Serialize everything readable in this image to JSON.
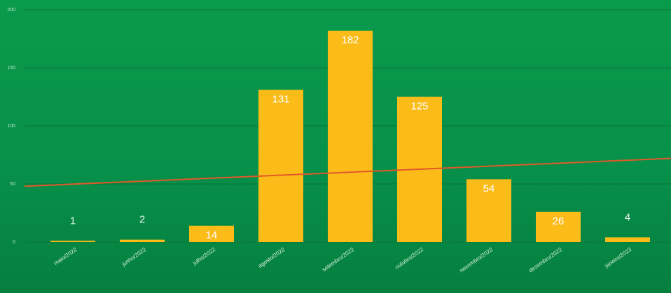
{
  "chart_data": {
    "type": "bar",
    "categories": [
      "maio/2022",
      "junho/2022",
      "julho/2022",
      "agosto/2022",
      "setembro/2022",
      "outubro/2022",
      "novembro/2022",
      "dezembro/2022",
      "janeiro/2023"
    ],
    "values": [
      1,
      2,
      14,
      131,
      182,
      125,
      54,
      26,
      4
    ],
    "ylim": [
      0,
      200
    ],
    "yticks": [
      0,
      50,
      100,
      150,
      200
    ],
    "grid": true,
    "trendline": {
      "start": 48,
      "end": 72
    },
    "colors": {
      "bar": "#fbbc1a",
      "trend": "#e2592a",
      "grid": "#0b7a3c",
      "label_inside": "#ffffff",
      "label_outside": "#e6f5ea"
    }
  }
}
